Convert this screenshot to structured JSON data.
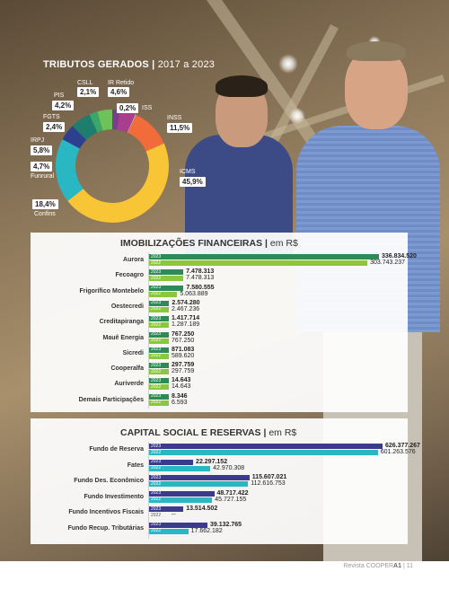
{
  "tributos": {
    "title": "TRIBUTOS GERADOS",
    "period": "2017 a 2023",
    "items": [
      {
        "label": "CSLL",
        "value": "2,1%",
        "share": 2.1,
        "color": "#7a3e8c"
      },
      {
        "label": "IR Retido",
        "value": "4,6%",
        "share": 4.6,
        "color": "#a73e8e"
      },
      {
        "label": "ISS",
        "value": "0,2%",
        "share": 0.2,
        "color": "#c9c9c9"
      },
      {
        "label": "INSS",
        "value": "11,5%",
        "share": 11.5,
        "color": "#f26b3a"
      },
      {
        "label": "ICMS",
        "value": "45,9%",
        "share": 45.9,
        "color": "#f7c536"
      },
      {
        "label": "Confins",
        "value": "18,4%",
        "share": 18.4,
        "color": "#2ab7c4"
      },
      {
        "label": "Funrural",
        "value": "4,7%",
        "share": 4.7,
        "color": "#2d3f8f"
      },
      {
        "label": "IRPJ",
        "value": "5,8%",
        "share": 5.8,
        "color": "#1f7d6d"
      },
      {
        "label": "FGTS",
        "value": "2,4%",
        "share": 2.4,
        "color": "#3aa66a"
      },
      {
        "label": "PIS",
        "value": "4,2%",
        "share": 4.2,
        "color": "#6fc25a"
      }
    ]
  },
  "imob": {
    "title": "IMOBILIZAÇÕES FINANCEIRAS",
    "unit": "em R$",
    "year_a": "2023",
    "year_b": "2022",
    "color_a": "#2e8b57",
    "color_b": "#8cc63f",
    "rows": [
      {
        "name": "Aurora",
        "v2023": "336.834.520",
        "v2022": "303.743.237",
        "n2023": 336834520,
        "n2022": 303743237
      },
      {
        "name": "Fecoagro",
        "v2023": "7.478.313",
        "v2022": "7.478.313",
        "n2023": 7478313,
        "n2022": 7478313
      },
      {
        "name": "Frigorífico Montebelo",
        "v2023": "7.580.555",
        "v2022": "5.063.889",
        "n2023": 7580555,
        "n2022": 5063889
      },
      {
        "name": "Oestecredi",
        "v2023": "2.574.280",
        "v2022": "2.467.236",
        "n2023": 2574280,
        "n2022": 2467236
      },
      {
        "name": "Creditapiranga",
        "v2023": "1.417.714",
        "v2022": "1.287.189",
        "n2023": 1417714,
        "n2022": 1287189
      },
      {
        "name": "Mauê Energia",
        "v2023": "767.250",
        "v2022": "767.250",
        "n2023": 767250,
        "n2022": 767250
      },
      {
        "name": "Sicredi",
        "v2023": "871.083",
        "v2022": "589.620",
        "n2023": 871083,
        "n2022": 589620
      },
      {
        "name": "Cooperalfa",
        "v2023": "297.759",
        "v2022": "297.759",
        "n2023": 297759,
        "n2022": 297759
      },
      {
        "name": "Auriverde",
        "v2023": "14.643",
        "v2022": "14.643",
        "n2023": 14643,
        "n2022": 14643
      },
      {
        "name": "Demais Participações",
        "v2023": "8.346",
        "v2022": "6.593",
        "n2023": 8346,
        "n2022": 6593
      }
    ]
  },
  "capital": {
    "title": "CAPITAL SOCIAL E RESERVAS",
    "unit": "em R$",
    "year_a": "2023",
    "year_b": "2022",
    "color_a": "#3b3a8c",
    "color_b": "#2ab7c4",
    "rows": [
      {
        "name": "Fundo de Reserva",
        "v2023": "626.377.267",
        "v2022": "601.263.576",
        "n2023": 626377267,
        "n2022": 601263576
      },
      {
        "name": "Fates",
        "v2023": "22.297.152",
        "v2022": "42.970.308",
        "n2023": 22297152,
        "n2022": 42970308
      },
      {
        "name": "Fundo Des. Econômico",
        "v2023": "115.607.021",
        "v2022": "112.616.753",
        "n2023": 115607021,
        "n2022": 112616753
      },
      {
        "name": "Fundo Investimento",
        "v2023": "48.717.422",
        "v2022": "45.727.155",
        "n2023": 48717422,
        "n2022": 45727155
      },
      {
        "name": "Fundo Incentivos Fiscais",
        "v2023": "13.514.502",
        "v2022": "--",
        "n2023": 13514502,
        "n2022": 0
      },
      {
        "name": "Fundo Recup. Tributárias",
        "v2023": "39.132.765",
        "v2022": "17.662.182",
        "n2023": 39132765,
        "n2022": 17662182
      }
    ]
  },
  "footer": {
    "magazine": "Revista COOPER",
    "brand": "A1",
    "page": "11"
  }
}
